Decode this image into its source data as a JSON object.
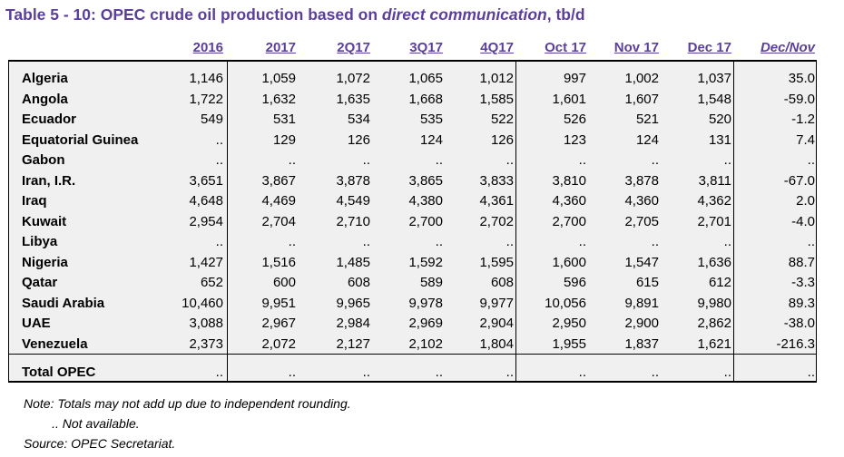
{
  "title_plain": "Table 5 - 10: OPEC crude oil production based on ",
  "title_italic": "direct communication",
  "title_end": ", tb/d",
  "columns": [
    "2016",
    "2017",
    "2Q17",
    "3Q17",
    "4Q17",
    "Oct 17",
    "Nov 17",
    "Dec 17",
    "Dec/Nov"
  ],
  "rows": [
    {
      "country": "Algeria",
      "values": [
        "1,146",
        "1,059",
        "1,072",
        "1,065",
        "1,012",
        "997",
        "1,002",
        "1,037",
        "35.0"
      ]
    },
    {
      "country": "Angola",
      "values": [
        "1,722",
        "1,632",
        "1,635",
        "1,668",
        "1,585",
        "1,601",
        "1,607",
        "1,548",
        "-59.0"
      ]
    },
    {
      "country": "Ecuador",
      "values": [
        "549",
        "531",
        "534",
        "535",
        "522",
        "526",
        "521",
        "520",
        "-1.2"
      ]
    },
    {
      "country": "Equatorial Guinea",
      "values": [
        "..",
        "129",
        "126",
        "124",
        "126",
        "123",
        "124",
        "131",
        "7.4"
      ]
    },
    {
      "country": "Gabon",
      "values": [
        "..",
        "..",
        "..",
        "..",
        "..",
        "..",
        "..",
        "..",
        ".."
      ]
    },
    {
      "country": "Iran, I.R.",
      "values": [
        "3,651",
        "3,867",
        "3,878",
        "3,865",
        "3,833",
        "3,810",
        "3,878",
        "3,811",
        "-67.0"
      ]
    },
    {
      "country": "Iraq",
      "values": [
        "4,648",
        "4,469",
        "4,549",
        "4,380",
        "4,361",
        "4,360",
        "4,360",
        "4,362",
        "2.0"
      ]
    },
    {
      "country": "Kuwait",
      "values": [
        "2,954",
        "2,704",
        "2,710",
        "2,700",
        "2,702",
        "2,700",
        "2,705",
        "2,701",
        "-4.0"
      ]
    },
    {
      "country": "Libya",
      "values": [
        "..",
        "..",
        "..",
        "..",
        "..",
        "..",
        "..",
        "..",
        ".."
      ]
    },
    {
      "country": "Nigeria",
      "values": [
        "1,427",
        "1,516",
        "1,485",
        "1,592",
        "1,595",
        "1,600",
        "1,547",
        "1,636",
        "88.7"
      ]
    },
    {
      "country": "Qatar",
      "values": [
        "652",
        "600",
        "608",
        "589",
        "608",
        "596",
        "615",
        "612",
        "-3.3"
      ]
    },
    {
      "country": "Saudi Arabia",
      "values": [
        "10,460",
        "9,951",
        "9,965",
        "9,978",
        "9,977",
        "10,056",
        "9,891",
        "9,980",
        "89.3"
      ]
    },
    {
      "country": "UAE",
      "values": [
        "3,088",
        "2,967",
        "2,984",
        "2,969",
        "2,904",
        "2,950",
        "2,900",
        "2,862",
        "-38.0"
      ]
    },
    {
      "country": "Venezuela",
      "values": [
        "2,373",
        "2,072",
        "2,127",
        "2,102",
        "1,804",
        "1,955",
        "1,837",
        "1,621",
        "-216.3"
      ]
    }
  ],
  "total": {
    "label": "Total  OPEC",
    "values": [
      "..",
      "..",
      "..",
      "..",
      "..",
      "..",
      "..",
      "..",
      ".."
    ]
  },
  "notes": [
    "Note: Totals may not add up due to independent rounding.",
    "        .. Not available.",
    "Source: OPEC Secretariat."
  ]
}
